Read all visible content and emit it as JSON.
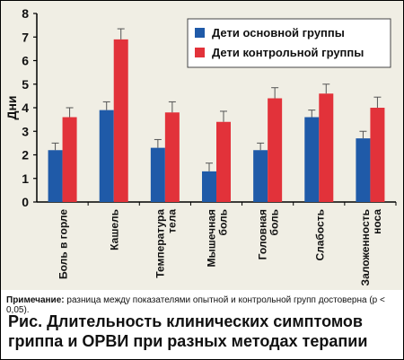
{
  "chart_data": {
    "type": "bar",
    "ylabel": "Дни",
    "xlabel": "",
    "ylim": [
      0,
      8
    ],
    "yticks": [
      0,
      1,
      2,
      3,
      4,
      5,
      6,
      7,
      8
    ],
    "grid": false,
    "legend_position": "top-right",
    "error_bars": true,
    "categories": [
      [
        "Боль в горле"
      ],
      [
        "Кашель"
      ],
      [
        "Температура",
        "тела"
      ],
      [
        "Мышечная",
        "боль"
      ],
      [
        "Головная",
        "боль"
      ],
      [
        "Слабость"
      ],
      [
        "Заложенность",
        "носа"
      ]
    ],
    "series": [
      {
        "name": "Дети основной группы",
        "color": "#1f5aa8",
        "values": [
          2.2,
          3.9,
          2.3,
          1.3,
          2.2,
          3.6,
          2.7
        ],
        "errors": [
          0.3,
          0.35,
          0.35,
          0.35,
          0.3,
          0.3,
          0.3
        ]
      },
      {
        "name": "Дети контрольной группы",
        "color": "#e2323a",
        "values": [
          3.6,
          6.9,
          3.8,
          3.4,
          4.4,
          4.6,
          4.0
        ],
        "errors": [
          0.4,
          0.45,
          0.45,
          0.45,
          0.45,
          0.4,
          0.45
        ]
      }
    ]
  },
  "footnote": {
    "label": "Примечание:",
    "text": " разница между показателями опытной и контрольной групп достоверна (р < 0,05)."
  },
  "caption": "Рис. Длительность клинических симптомов гриппа и ОРВИ при разных методах терапии"
}
